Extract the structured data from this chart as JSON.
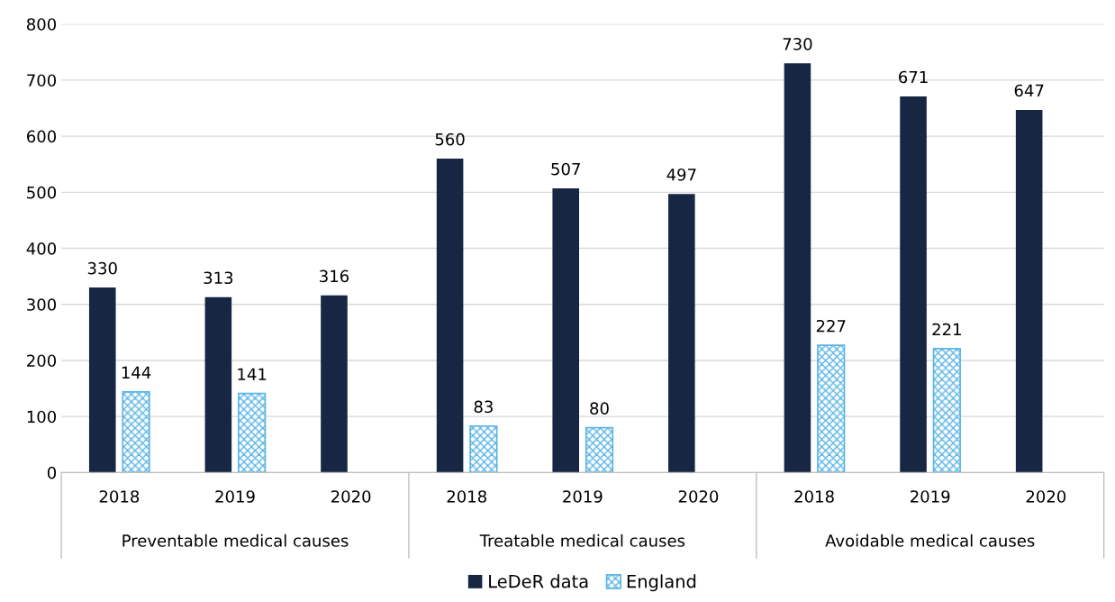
{
  "chart_data": {
    "type": "bar",
    "categories": [
      "2018",
      "2019",
      "2020",
      "2018",
      "2019",
      "2020",
      "2018",
      "2019",
      "2020"
    ],
    "series": [
      {
        "name": "LeDeR data",
        "color": "#172642",
        "values": [
          330,
          313,
          316,
          560,
          507,
          497,
          730,
          671,
          647
        ]
      },
      {
        "name": "England",
        "color": "#5ab4e6",
        "values": [
          144,
          141,
          null,
          83,
          80,
          null,
          227,
          221,
          null
        ]
      }
    ],
    "annotations": [
      "Preventable medical causes",
      "Treatable medical causes",
      "Avoidable medical causes"
    ],
    "ylim": [
      0,
      800
    ],
    "yticks": [
      0,
      100,
      200,
      300,
      400,
      500,
      600,
      700,
      800
    ],
    "grid": "y",
    "legend": "bottom",
    "data_labels": true
  }
}
